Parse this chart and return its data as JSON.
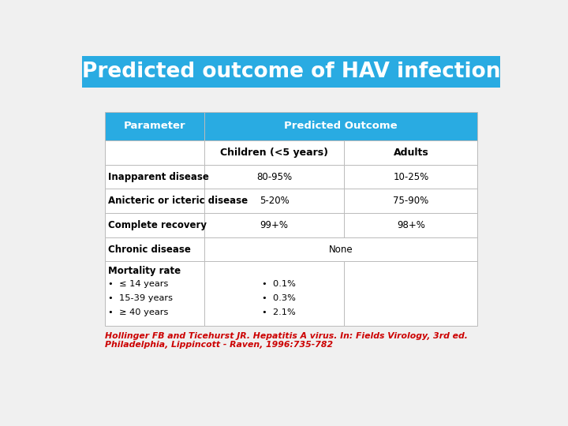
{
  "title": "Predicted outcome of HAV infection",
  "title_bg_color": "#29ABE2",
  "title_text_color": "#FFFFFF",
  "bg_color": "#F0F0F0",
  "table_header_bg": "#29ABE2",
  "table_header_text": "#FFFFFF",
  "table_border_color": "#BBBBBB",
  "col_header1": "Parameter",
  "col_header2": "Predicted Outcome",
  "col_subheader2": "Children (<5 years)",
  "col_subheader3": "Adults",
  "rows": [
    [
      "Inapparent disease",
      "80-95%",
      "10-25%"
    ],
    [
      "Anicteric or icteric disease",
      "5-20%",
      "75-90%"
    ],
    [
      "Complete recovery",
      "99+%",
      "98+%"
    ],
    [
      "Chronic disease",
      "None",
      ""
    ],
    [
      "Mortality rate",
      "",
      ""
    ]
  ],
  "mortality_bullets_left": [
    "•  ≤ 14 years",
    "•  15-39 years",
    "•  ≥ 40 years"
  ],
  "mortality_bullets_right": [
    "•  0.1%",
    "•  0.3%",
    "•  2.1%"
  ],
  "citation": "Hollinger FB and Ticehurst JR. Hepatitis A virus. In: Fields Virology, 3rd ed.\nPhiladelphia, Lippincott - Raven, 1996:735-782",
  "citation_color": "#CC0000"
}
